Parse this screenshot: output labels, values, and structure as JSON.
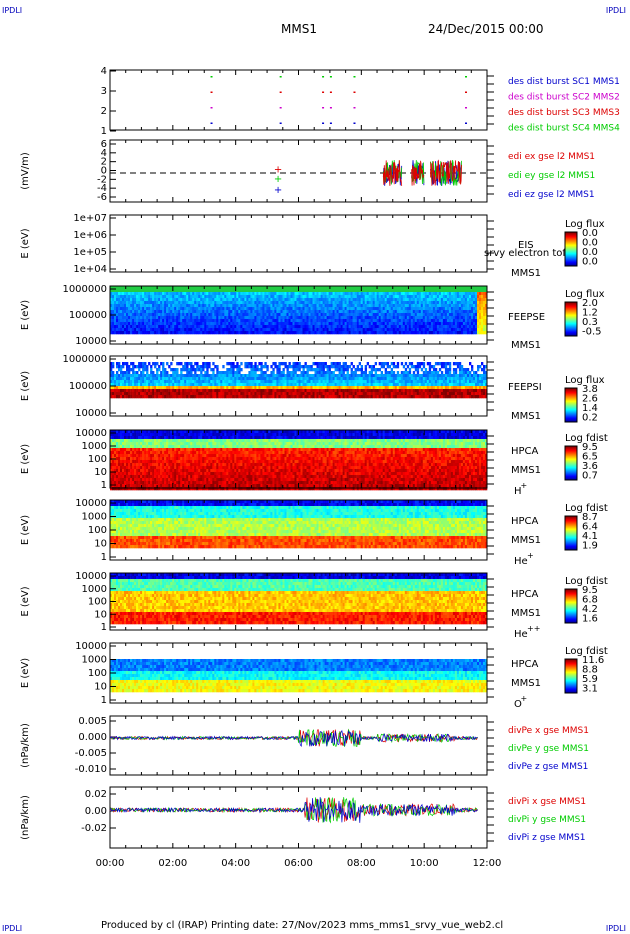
{
  "corner_labels": {
    "top_left": "IPDLI",
    "top_right": "IPDLI",
    "bottom_left": "IPDLI",
    "bottom_right": "IPDLI"
  },
  "header": {
    "spacecraft": "MMS1",
    "date": "24/Dec/2015 00:00"
  },
  "footer": {
    "text": "Produced by cl (IRAP)   Printing date: 27/Nov/2023   mms_mms1_srvy_vue_web2.cl"
  },
  "colors": {
    "sc1": "#0000cc",
    "sc2": "#cc00cc",
    "sc3": "#dd0000",
    "sc4": "#00cc00",
    "x": "#dd0000",
    "y": "#00cc00",
    "z": "#0000cc"
  },
  "chart_data": [
    {
      "type": "scatter",
      "panel": "burst",
      "xlim": [
        "00:00",
        "12:00"
      ],
      "ylim": [
        0.5,
        4.5
      ],
      "yticks": [
        "1",
        "2",
        "3",
        "4"
      ],
      "legend": [
        "des dist burst SC1 MMS1",
        "des dist burst SC2 MMS2",
        "des dist burst SC3 MMS3",
        "des dist burst SC4 MMS4"
      ],
      "burst_times_hours": [
        3.2,
        5.4,
        6.75,
        7.0,
        7.75,
        11.3
      ]
    },
    {
      "type": "line",
      "panel": "edi",
      "ylabel": "(mV/m)",
      "ylim": [
        -7,
        7
      ],
      "yticks": [
        "6",
        "4",
        "2",
        "0",
        "-2",
        "-4",
        "-6"
      ],
      "series": [
        {
          "name": "edi ex gse l2 MMS1"
        },
        {
          "name": "edi ey gse l2 MMS1"
        },
        {
          "name": "edi ez gse l2 MMS1"
        }
      ]
    },
    {
      "type": "heatmap",
      "panel": "eis",
      "ylabel": "E (eV)",
      "yticks": [
        "1e+07",
        "1e+06",
        "1e+05",
        "1e+04"
      ],
      "instrument": [
        "EIS",
        "MMS1"
      ],
      "overlay_text": "srvy electron tof",
      "colorbar": {
        "title": "Log flux",
        "ticks": [
          "0.0",
          "0.0",
          "0.0",
          "0.0"
        ]
      }
    },
    {
      "type": "heatmap",
      "panel": "feepse",
      "ylabel": "E (eV)",
      "yticks": [
        "1000000",
        "100000",
        "10000"
      ],
      "instrument": [
        "FEEPSE",
        "MMS1"
      ],
      "colorbar": {
        "title": "Log flux",
        "ticks": [
          "2.0",
          "1.2",
          "0.3",
          "-0.5"
        ]
      }
    },
    {
      "type": "heatmap",
      "panel": "feepsi",
      "ylabel": "E (eV)",
      "yticks": [
        "1000000",
        "100000",
        "10000"
      ],
      "instrument": [
        "FEEPSI",
        "MMS1"
      ],
      "colorbar": {
        "title": "Log flux",
        "ticks": [
          "3.8",
          "2.6",
          "1.4",
          "0.2"
        ]
      }
    },
    {
      "type": "heatmap",
      "panel": "hpca_h",
      "ylabel": "E (eV)",
      "yticks": [
        "10000",
        "1000",
        "100",
        "10",
        "1"
      ],
      "instrument": [
        "HPCA",
        "MMS1"
      ],
      "species": "H",
      "charge": "+",
      "colorbar": {
        "title": "Log fdist",
        "ticks": [
          "9.5",
          "6.5",
          "3.6",
          "0.7"
        ]
      }
    },
    {
      "type": "heatmap",
      "panel": "hpca_he1",
      "ylabel": "E (eV)",
      "yticks": [
        "10000",
        "1000",
        "100",
        "10",
        "1"
      ],
      "instrument": [
        "HPCA",
        "MMS1"
      ],
      "species": "He",
      "charge": "+",
      "colorbar": {
        "title": "Log fdist",
        "ticks": [
          "8.7",
          "6.4",
          "4.1",
          "1.9"
        ]
      }
    },
    {
      "type": "heatmap",
      "panel": "hpca_he2",
      "ylabel": "E (eV)",
      "yticks": [
        "10000",
        "1000",
        "100",
        "10",
        "1"
      ],
      "instrument": [
        "HPCA",
        "MMS1"
      ],
      "species": "He",
      "charge": "++",
      "colorbar": {
        "title": "Log fdist",
        "ticks": [
          "9.5",
          "6.8",
          "4.2",
          "1.6"
        ]
      }
    },
    {
      "type": "heatmap",
      "panel": "hpca_o",
      "ylabel": "E (eV)",
      "yticks": [
        "10000",
        "1000",
        "100",
        "10",
        "1"
      ],
      "instrument": [
        "HPCA",
        "MMS1"
      ],
      "species": "O",
      "charge": "+",
      "colorbar": {
        "title": "Log fdist",
        "ticks": [
          "11.6",
          "8.8",
          "5.9",
          "3.1"
        ]
      }
    },
    {
      "type": "line",
      "panel": "divpe",
      "ylabel": "(nPa/km)",
      "ylim": [
        -0.011,
        0.006
      ],
      "yticks": [
        "0.005",
        "0.000",
        "-0.005",
        "-0.010"
      ],
      "series": [
        {
          "name": "divPe x gse MMS1"
        },
        {
          "name": "divPe y gse MMS1"
        },
        {
          "name": "divPe z gse MMS1"
        }
      ]
    },
    {
      "type": "line",
      "panel": "divpi",
      "ylabel": "(nPa/km)",
      "ylim": [
        -0.03,
        0.025
      ],
      "yticks": [
        "0.02",
        "0.00",
        "-0.02"
      ],
      "series": [
        {
          "name": "divPi x gse MMS1"
        },
        {
          "name": "divPi y gse MMS1"
        },
        {
          "name": "divPi z gse MMS1"
        }
      ]
    }
  ],
  "time_axis": {
    "ticks": [
      "00:00",
      "02:00",
      "04:00",
      "06:00",
      "08:00",
      "10:00",
      "12:00"
    ]
  }
}
